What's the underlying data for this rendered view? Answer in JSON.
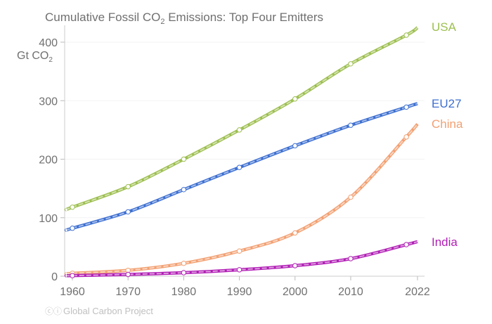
{
  "chart_data": {
    "type": "line",
    "title": "Cumulative Fossil CO",
    "title_sub": "2",
    "title_rest": " Emissions: Top Four Emitters",
    "ylabel": "Gt CO",
    "ylabel_sub": "2",
    "xlabel": "",
    "xlim": [
      1958.5,
      2023
    ],
    "ylim": [
      0,
      430
    ],
    "x_ticks": [
      1960,
      1970,
      1980,
      1990,
      2000,
      2010,
      2022
    ],
    "x_tick_labels": [
      "1960",
      "1970",
      "1980",
      "1990",
      "2000",
      "2010",
      "2022"
    ],
    "y_ticks": [
      0,
      100,
      200,
      300,
      400
    ],
    "y_tick_labels": [
      "0",
      "100",
      "200",
      "300",
      "400"
    ],
    "grid": true,
    "legend": "direct labels at line ends (right)",
    "x": [
      1959,
      1960,
      1970,
      1980,
      1990,
      2000,
      2010,
      2020,
      2022
    ],
    "series": [
      {
        "name": "USA",
        "color": "#9dbf50",
        "values": [
          114,
          118,
          153,
          200,
          250,
          303,
          363,
          412,
          425
        ]
      },
      {
        "name": "EU27",
        "color": "#3d6fd1",
        "values": [
          79,
          82,
          110,
          148,
          186,
          223,
          258,
          289,
          295
        ]
      },
      {
        "name": "China",
        "color": "#f2a072",
        "values": [
          4,
          5,
          10,
          22,
          43,
          74,
          135,
          238,
          260
        ]
      },
      {
        "name": "India",
        "color": "#b11fb5",
        "values": [
          1,
          1,
          3,
          6,
          11,
          18,
          30,
          54,
          59
        ]
      }
    ],
    "source": "Global Carbon Project"
  }
}
